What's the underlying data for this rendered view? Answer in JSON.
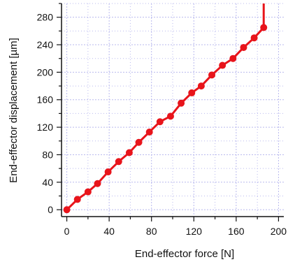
{
  "chart_data": {
    "type": "line",
    "xlabel": "End-effector force [N]",
    "ylabel": "End-effector displacement [µm]",
    "xlim": [
      -5,
      205
    ],
    "ylim": [
      -10,
      300
    ],
    "x_ticks": [
      0,
      40,
      80,
      120,
      160,
      200
    ],
    "y_ticks": [
      0,
      40,
      80,
      120,
      160,
      200,
      240,
      280
    ],
    "grid": true,
    "colors": {
      "series": "#e8141b",
      "grid": "#b9b9ee",
      "axis": "#111111"
    },
    "series": [
      {
        "x": [
          0,
          10,
          20,
          29,
          39,
          49,
          59,
          68,
          78,
          88,
          98,
          108,
          118,
          127,
          137,
          147,
          157,
          167,
          177,
          186
        ],
        "y": [
          0,
          15,
          26,
          38,
          55,
          70,
          83,
          98,
          113,
          128,
          136,
          155,
          170,
          180,
          196,
          210,
          220,
          236,
          250,
          265
        ]
      }
    ],
    "tail": {
      "x": 186,
      "y_from": 265,
      "y_to": 300
    }
  }
}
